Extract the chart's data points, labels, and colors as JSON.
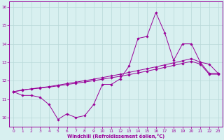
{
  "x": [
    0,
    1,
    2,
    3,
    4,
    5,
    6,
    7,
    8,
    9,
    10,
    11,
    12,
    13,
    14,
    15,
    16,
    17,
    18,
    19,
    20,
    21,
    22,
    23
  ],
  "y_raw": [
    11.4,
    11.2,
    11.2,
    11.1,
    10.7,
    9.9,
    10.2,
    10.0,
    10.1,
    10.7,
    11.8,
    11.8,
    12.1,
    12.8,
    14.3,
    14.4,
    15.7,
    14.6,
    13.1,
    14.0,
    14.0,
    13.0,
    12.9,
    12.4
  ],
  "y_trend1": [
    11.4,
    11.5,
    11.55,
    11.6,
    11.65,
    11.72,
    11.79,
    11.86,
    11.93,
    12.0,
    12.08,
    12.16,
    12.24,
    12.33,
    12.42,
    12.52,
    12.62,
    12.72,
    12.83,
    12.94,
    13.05,
    12.9,
    12.35,
    12.35
  ],
  "y_trend2": [
    11.4,
    11.48,
    11.56,
    11.62,
    11.68,
    11.76,
    11.84,
    11.92,
    12.0,
    12.08,
    12.17,
    12.26,
    12.35,
    12.45,
    12.55,
    12.65,
    12.75,
    12.86,
    12.97,
    13.08,
    13.2,
    13.0,
    12.4,
    12.4
  ],
  "line_color": "#990099",
  "bg_color": "#d8f0f0",
  "grid_color": "#b8d8d8",
  "xlabel": "Windchill (Refroidissement éolien,°C)",
  "ylim_min": 9.5,
  "ylim_max": 16.3,
  "xlim_min": -0.5,
  "xlim_max": 23.5,
  "yticks": [
    10,
    11,
    12,
    13,
    14,
    15,
    16
  ],
  "xticks": [
    0,
    1,
    2,
    3,
    4,
    5,
    6,
    7,
    8,
    9,
    10,
    11,
    12,
    13,
    14,
    15,
    16,
    17,
    18,
    19,
    20,
    21,
    22,
    23
  ],
  "marker": "D",
  "markersize": 1.8,
  "linewidth": 0.7,
  "tick_fontsize": 4.2,
  "xlabel_fontsize": 4.8
}
